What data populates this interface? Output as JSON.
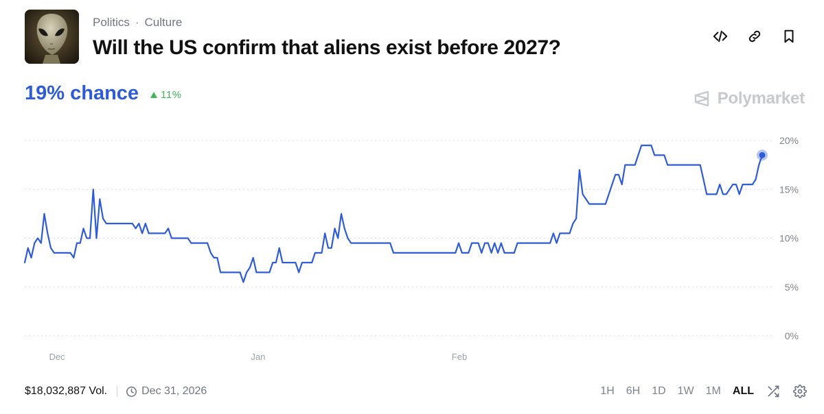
{
  "market": {
    "categories": [
      "Politics",
      "Culture"
    ],
    "separator": "·",
    "title": "Will the US confirm that aliens exist before 2027?",
    "chance_label": "19% chance",
    "change_label": "11%",
    "change_color": "#3fb65a",
    "accent_color": "#2e5bd6",
    "brand": "Polymarket"
  },
  "actions": [
    {
      "name": "embed-code-button",
      "icon": "code-icon"
    },
    {
      "name": "copy-link-button",
      "icon": "link-icon"
    },
    {
      "name": "bookmark-button",
      "icon": "bookmark-icon"
    }
  ],
  "footer": {
    "volume": "$18,032,887 Vol.",
    "end_date": "Dec 31, 2026"
  },
  "ranges": {
    "options": [
      "1H",
      "6H",
      "1D",
      "1W",
      "1M",
      "ALL"
    ],
    "selected": "ALL"
  },
  "chart_data": {
    "type": "line",
    "series": [
      {
        "values": [
          7.5,
          9,
          8,
          9.5,
          10,
          9.5,
          12.5,
          10.5,
          9,
          8.5,
          8.5,
          8.5,
          8.5,
          8.5,
          8.5,
          8,
          9.5,
          9.5,
          11,
          10,
          10,
          15,
          10,
          14,
          12,
          11.5,
          11.5,
          11.5,
          11.5,
          11.5,
          11.5,
          11.5,
          11.5,
          11.5,
          11,
          11.5,
          10.5,
          11.5,
          10.5,
          10.5,
          10.5,
          10.5,
          10.5,
          10.5,
          11,
          10,
          10,
          10,
          10,
          10,
          10,
          9.5,
          9.5,
          9.5,
          9.5,
          9.5,
          9.5,
          8.5,
          8,
          8,
          6.5,
          6.5,
          6.5,
          6.5,
          6.5,
          6.5,
          6.5,
          5.5,
          6.5,
          7,
          8,
          6.5,
          6.5,
          6.5,
          6.5,
          6.5,
          7.5,
          7.5,
          9,
          7.5,
          7.5,
          7.5,
          7.5,
          7.5,
          6.5,
          7.5,
          7.5,
          7.5,
          7.5,
          8.5,
          8.5,
          8.5,
          10.5,
          9,
          9,
          11,
          10,
          12.5,
          11,
          10,
          9.5,
          9.5,
          9.5,
          9.5,
          9.5,
          9.5,
          9.5,
          9.5,
          9.5,
          9.5,
          9.5,
          9.5,
          9.5,
          8.5,
          8.5,
          8.5,
          8.5,
          8.5,
          8.5,
          8.5,
          8.5,
          8.5,
          8.5,
          8.5,
          8.5,
          8.5,
          8.5,
          8.5,
          8.5,
          8.5,
          8.5,
          8.5,
          8.5,
          9.5,
          8.5,
          8.5,
          8.5,
          9.5,
          9.5,
          9.5,
          8.5,
          9.5,
          9.5,
          8.5,
          9.5,
          8.5,
          9.5,
          8.5,
          8.5,
          8.5,
          8.5,
          9.5,
          9.5,
          9.5,
          9.5,
          9.5,
          9.5,
          9.5,
          9.5,
          9.5,
          9.5,
          9.5,
          10.5,
          9.5,
          10.5,
          10.5,
          10.5,
          10.5,
          11.5,
          12,
          17,
          14.5,
          14,
          13.5,
          13.5,
          13.5,
          13.5,
          13.5,
          13.5,
          14.5,
          15.5,
          16.5,
          16.5,
          15.5,
          17.5,
          17.5,
          17.5,
          17.5,
          18.5,
          19.5,
          19.5,
          19.5,
          19.5,
          18.5,
          18.5,
          18.5,
          18.5,
          17.5,
          17.5,
          17.5,
          17.5,
          17.5,
          17.5,
          17.5,
          17.5,
          17.5,
          17.5,
          17.5,
          16,
          14.5,
          14.5,
          14.5,
          14.5,
          15.5,
          14.5,
          14.5,
          15,
          15.5,
          15.5,
          14.5,
          15.5,
          15.5,
          15.5,
          15.5,
          16,
          17.5,
          18.5
        ]
      }
    ],
    "x_labels": [
      "Dec",
      "Jan",
      "Feb"
    ],
    "y_ticks": [
      "20%",
      "15%",
      "10%",
      "5%",
      "0%"
    ],
    "y_values": [
      20,
      15,
      10,
      5,
      0
    ],
    "ylim": [
      0,
      20
    ],
    "grid": true,
    "line_color": "#2e5bd6",
    "last_value": 18.5
  }
}
